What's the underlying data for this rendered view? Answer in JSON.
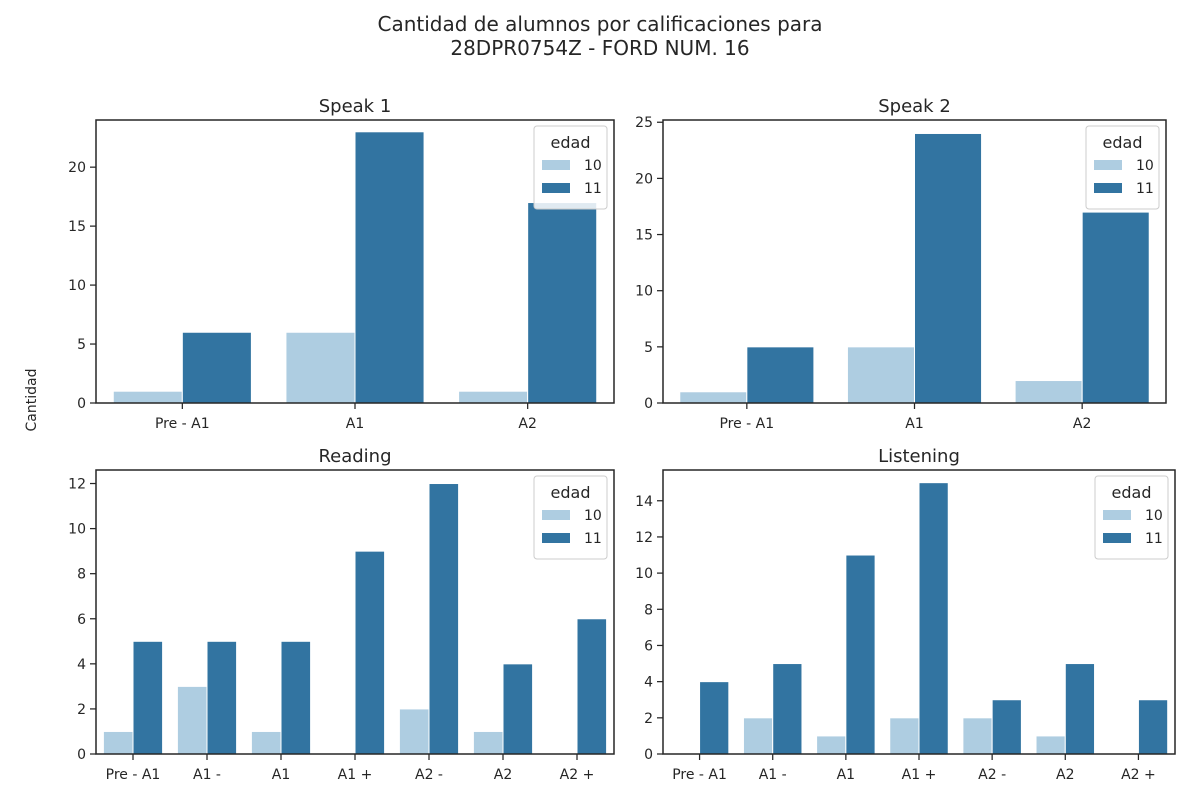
{
  "figure": {
    "title_line1": "Cantidad de alumnos por calificaciones para",
    "title_line2": "28DPR0754Z - FORD NUM. 16",
    "ylabel": "Cantidad"
  },
  "colors": {
    "10": "#aecde1",
    "11": "#3274a1"
  },
  "chart_data": [
    {
      "type": "bar",
      "title": "Speak 1",
      "categories": [
        "Pre - A1",
        "A1",
        "A2"
      ],
      "series": [
        {
          "name": "10",
          "values": [
            1,
            6,
            1
          ]
        },
        {
          "name": "11",
          "values": [
            6,
            23,
            17
          ]
        }
      ],
      "ylim": [
        0,
        24
      ],
      "yticks": [
        0,
        5,
        10,
        15,
        20
      ],
      "legend": {
        "title": "edad",
        "placement": "top-right"
      }
    },
    {
      "type": "bar",
      "title": "Speak 2",
      "categories": [
        "Pre - A1",
        "A1",
        "A2"
      ],
      "series": [
        {
          "name": "10",
          "values": [
            1,
            5,
            2
          ]
        },
        {
          "name": "11",
          "values": [
            5,
            24,
            17
          ]
        }
      ],
      "ylim": [
        0,
        25.2
      ],
      "yticks": [
        0,
        5,
        10,
        15,
        20,
        25
      ],
      "legend": {
        "title": "edad",
        "placement": "top-right"
      }
    },
    {
      "type": "bar",
      "title": "Reading",
      "categories": [
        "Pre - A1",
        "A1 -",
        "A1",
        "A1 +",
        "A2 -",
        "A2",
        "A2 +"
      ],
      "series": [
        {
          "name": "10",
          "values": [
            1,
            3,
            1,
            0,
            2,
            1,
            0
          ]
        },
        {
          "name": "11",
          "values": [
            5,
            5,
            5,
            9,
            12,
            4,
            6
          ]
        }
      ],
      "ylim": [
        0,
        12.6
      ],
      "yticks": [
        0,
        2,
        4,
        6,
        8,
        10,
        12
      ],
      "legend": {
        "title": "edad",
        "placement": "top-right"
      }
    },
    {
      "type": "bar",
      "title": "Listening",
      "categories": [
        "Pre - A1",
        "A1 -",
        "A1",
        "A1 +",
        "A2 -",
        "A2",
        "A2 +"
      ],
      "series": [
        {
          "name": "10",
          "values": [
            0,
            2,
            1,
            2,
            2,
            1,
            0
          ]
        },
        {
          "name": "11",
          "values": [
            4,
            5,
            11,
            15,
            3,
            5,
            3
          ]
        }
      ],
      "ylim": [
        0,
        15.7
      ],
      "yticks": [
        0,
        2,
        4,
        6,
        8,
        10,
        12,
        14
      ],
      "legend": {
        "title": "edad",
        "placement": "top-right"
      }
    }
  ]
}
